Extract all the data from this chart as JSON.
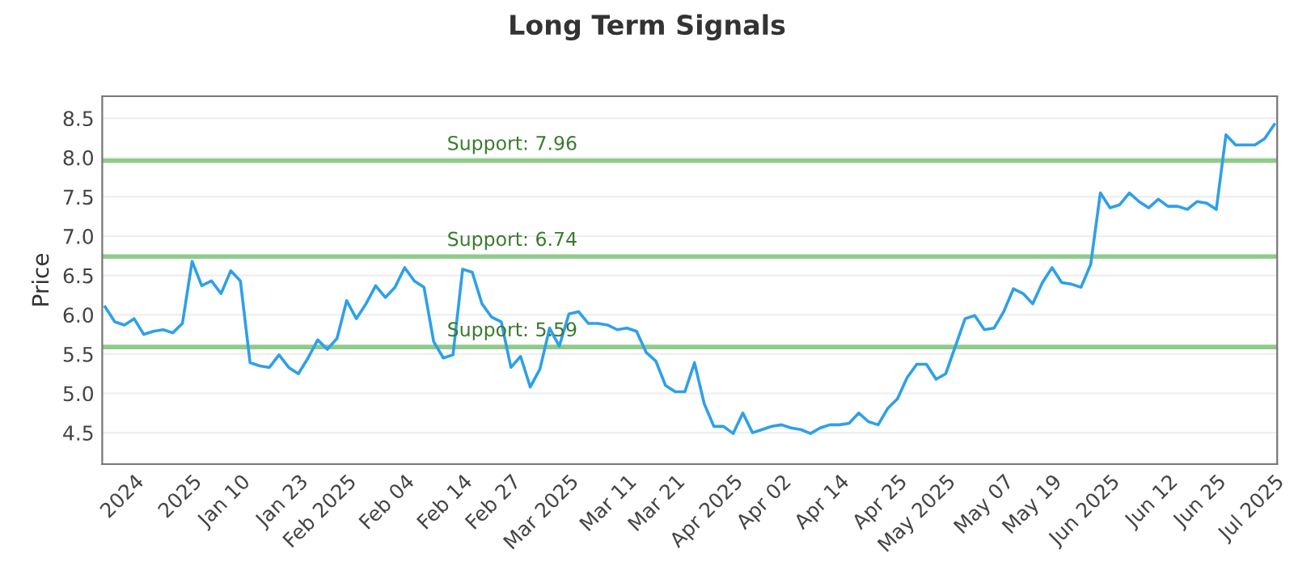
{
  "chart_data": {
    "type": "line",
    "title": "Long Term Signals",
    "ylabel": "Price",
    "categories": [
      null,
      null,
      null,
      "2024",
      null,
      null,
      null,
      null,
      null,
      "2025",
      null,
      null,
      null,
      null,
      "Jan 10",
      null,
      null,
      null,
      null,
      null,
      "Jan 23",
      null,
      null,
      null,
      null,
      "Feb 2025",
      null,
      null,
      null,
      null,
      null,
      "Feb 04",
      null,
      null,
      null,
      null,
      null,
      "Feb 14",
      null,
      null,
      null,
      null,
      "Feb 27",
      null,
      null,
      null,
      null,
      null,
      "Mar 2025",
      null,
      null,
      null,
      null,
      null,
      "Mar 11",
      null,
      null,
      null,
      null,
      "Mar 21",
      null,
      null,
      null,
      null,
      null,
      "Apr 2025",
      null,
      null,
      null,
      null,
      "Apr 02",
      null,
      null,
      null,
      null,
      null,
      "Apr 14",
      null,
      null,
      null,
      null,
      null,
      "Apr 25",
      null,
      null,
      null,
      null,
      "May 2025",
      null,
      null,
      null,
      null,
      null,
      "May 07",
      null,
      null,
      null,
      null,
      "May 19",
      null,
      null,
      null,
      null,
      null,
      "Jun 2025",
      null,
      null,
      null,
      null,
      null,
      "Jun 12",
      null,
      null,
      null,
      null,
      "Jun 25",
      null,
      null,
      null,
      null,
      null,
      "Jul 2025"
    ],
    "series": [
      {
        "color": "#2ea0e8",
        "values": [
          6.1,
          5.91,
          5.87,
          5.95,
          5.75,
          5.79,
          5.81,
          5.77,
          5.89,
          6.68,
          6.37,
          6.43,
          6.27,
          6.56,
          6.43,
          5.39,
          5.35,
          5.33,
          5.49,
          5.33,
          5.25,
          5.45,
          5.68,
          5.56,
          5.7,
          6.18,
          5.95,
          6.14,
          6.37,
          6.22,
          6.35,
          6.6,
          6.43,
          6.35,
          5.66,
          5.45,
          5.49,
          6.58,
          6.54,
          6.14,
          5.97,
          5.91,
          5.33,
          5.47,
          5.08,
          5.31,
          5.83,
          5.6,
          6.01,
          6.04,
          5.89,
          5.89,
          5.87,
          5.81,
          5.83,
          5.79,
          5.52,
          5.41,
          5.1,
          5.02,
          5.02,
          5.39,
          4.87,
          4.58,
          4.58,
          4.49,
          4.75,
          4.5,
          4.54,
          4.58,
          4.6,
          4.56,
          4.54,
          4.49,
          4.56,
          4.6,
          4.6,
          4.62,
          4.75,
          4.64,
          4.6,
          4.81,
          4.93,
          5.2,
          5.37,
          5.37,
          5.18,
          5.25,
          5.6,
          5.95,
          5.99,
          5.81,
          5.83,
          6.04,
          6.33,
          6.27,
          6.14,
          6.41,
          6.6,
          6.41,
          6.39,
          6.35,
          6.64,
          7.55,
          7.36,
          7.4,
          7.55,
          7.44,
          7.36,
          7.47,
          7.38,
          7.38,
          7.34,
          7.44,
          7.42,
          7.34,
          8.29,
          8.16,
          8.16,
          8.16,
          8.24,
          8.42
        ]
      }
    ],
    "ylim": [
      4.1,
      8.78
    ],
    "yticks": [
      4.5,
      {
        "value": 5,
        "label": "5.0"
      },
      5.5,
      {
        "value": 6,
        "label": "6.0"
      },
      6.5,
      {
        "value": 7,
        "label": "7.0"
      },
      7.5,
      {
        "value": 8,
        "label": "8.0"
      },
      8.5
    ],
    "ref_lines": [
      {
        "axis": "y",
        "value": 7.96,
        "label": "Support: 7.96",
        "color": "#8fcb8a"
      },
      {
        "axis": "y",
        "value": 6.74,
        "label": "Support: 6.74",
        "color": "#8fcb8a"
      },
      {
        "axis": "y",
        "value": 5.59,
        "label": "Support: 5.59",
        "color": "#8fcb8a"
      }
    ],
    "grid": "y",
    "legend": false,
    "marker": "none",
    "line_style": "solid"
  }
}
